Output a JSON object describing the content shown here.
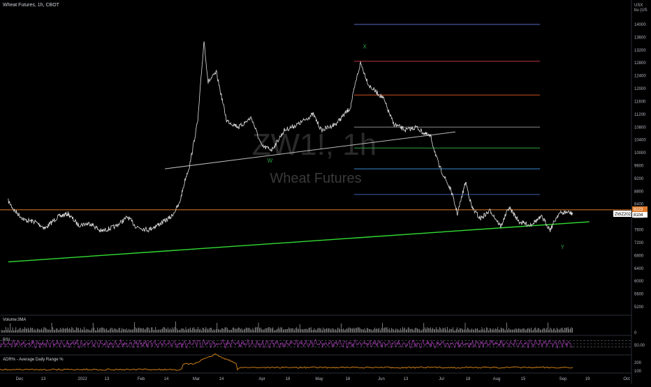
{
  "header": {
    "title": "Wheat Futures, 1h, CBOT",
    "currency": "USX",
    "currency_unit": "bu (US"
  },
  "watermark": {
    "symbol": "ZW1!, 1h",
    "name": "Wheat Futures"
  },
  "price_axis": {
    "ticks": [
      14000,
      13600,
      13200,
      12800,
      12400,
      12000,
      11600,
      11200,
      10800,
      10400,
      10000,
      9600,
      9200,
      8800,
      8400,
      8000,
      7600,
      7200,
      6800,
      6400,
      6000,
      5600,
      5200
    ],
    "last_price": "8104",
    "line_price": "8223",
    "contract_label": "ZWZ2022",
    "contract_price": "8104"
  },
  "time_axis": {
    "labels": [
      "Dec",
      "13",
      "2022",
      "13",
      "Feb",
      "14",
      "Mar",
      "14",
      "Apr",
      "18",
      "May",
      "16",
      "Jun",
      "13",
      "Jul",
      "18",
      "Aug",
      "15",
      "Sep",
      "19",
      "Oct"
    ]
  },
  "volume_pane": {
    "title": "Volume",
    "ma_label": "3MA",
    "ticks": [
      "0"
    ]
  },
  "rsi_pane": {
    "title": "RSI",
    "ticks": [
      "50.00"
    ]
  },
  "adr_pane": {
    "title": "ADR% - Average Daily Range %",
    "ticks": [
      "200",
      "100"
    ]
  },
  "wave_labels": {
    "w": "W",
    "x": "X",
    "y": "Y"
  },
  "colors": {
    "background": "#000000",
    "price": "#e0e0e0",
    "support_line": "#33dd33",
    "horizontal_line": "#e07a2b",
    "trendline": "#bbbbbb",
    "wave_label": "#2ea043",
    "rsi": "#b040c0",
    "adr": "#e08a1a",
    "fib_levels": [
      "#5a6dc0",
      "#c0304a",
      "#d05020",
      "#8a8a8a",
      "#2ea043",
      "#3a8ad0",
      "#3a60b0"
    ]
  },
  "chart_data": {
    "type": "line",
    "title": "Wheat Futures, 1h, CBOT",
    "series": [
      {
        "name": "ZW1!",
        "points": [
          [
            "2021-11-28",
            8500
          ],
          [
            "2021-12-01",
            8200
          ],
          [
            "2021-12-06",
            7900
          ],
          [
            "2021-12-11",
            7850
          ],
          [
            "2021-12-16",
            7650
          ],
          [
            "2021-12-22",
            8000
          ],
          [
            "2021-12-27",
            8100
          ],
          [
            "2022-01-01",
            7750
          ],
          [
            "2022-01-07",
            7800
          ],
          [
            "2022-01-12",
            7550
          ],
          [
            "2022-01-19",
            7700
          ],
          [
            "2022-01-25",
            8000
          ],
          [
            "2022-01-29",
            7700
          ],
          [
            "2022-02-04",
            7600
          ],
          [
            "2022-02-10",
            7800
          ],
          [
            "2022-02-15",
            8000
          ],
          [
            "2022-02-19",
            8400
          ],
          [
            "2022-02-22",
            9200
          ],
          [
            "2022-02-24",
            9600
          ],
          [
            "2022-02-28",
            11000
          ],
          [
            "2022-03-03",
            13500
          ],
          [
            "2022-03-05",
            12200
          ],
          [
            "2022-03-09",
            12500
          ],
          [
            "2022-03-14",
            11000
          ],
          [
            "2022-03-20",
            10800
          ],
          [
            "2022-03-26",
            11100
          ],
          [
            "2022-03-31",
            10200
          ],
          [
            "2022-04-05",
            10100
          ],
          [
            "2022-04-11",
            10700
          ],
          [
            "2022-04-18",
            10900
          ],
          [
            "2022-04-25",
            11200
          ],
          [
            "2022-04-29",
            10700
          ],
          [
            "2022-05-06",
            10900
          ],
          [
            "2022-05-13",
            11400
          ],
          [
            "2022-05-16",
            12300
          ],
          [
            "2022-05-18",
            12800
          ],
          [
            "2022-05-22",
            12100
          ],
          [
            "2022-05-29",
            11700
          ],
          [
            "2022-06-03",
            10900
          ],
          [
            "2022-06-09",
            10700
          ],
          [
            "2022-06-14",
            10800
          ],
          [
            "2022-06-18",
            10600
          ],
          [
            "2022-06-21",
            10500
          ],
          [
            "2022-06-25",
            9600
          ],
          [
            "2022-06-28",
            9200
          ],
          [
            "2022-07-01",
            8800
          ],
          [
            "2022-07-04",
            8100
          ],
          [
            "2022-07-08",
            9100
          ],
          [
            "2022-07-11",
            8300
          ],
          [
            "2022-07-15",
            7950
          ],
          [
            "2022-07-20",
            8200
          ],
          [
            "2022-07-25",
            7700
          ],
          [
            "2022-07-29",
            8300
          ],
          [
            "2022-08-03",
            7850
          ],
          [
            "2022-08-08",
            7750
          ],
          [
            "2022-08-14",
            8000
          ],
          [
            "2022-08-18",
            7600
          ],
          [
            "2022-08-22",
            8100
          ],
          [
            "2022-08-26",
            8150
          ],
          [
            "2022-08-29",
            8104
          ]
        ]
      },
      {
        "name": "RSI",
        "levels": [
          70,
          50,
          30
        ]
      }
    ],
    "ylim": [
      5000,
      14300
    ],
    "price_levels": [
      14000,
      12850,
      11800,
      10800,
      10150,
      9500,
      8700
    ],
    "support_line": {
      "from": [
        "2021-11-28",
        6600
      ],
      "to": [
        "2022-09-06",
        7850
      ]
    },
    "horizontal_line": 8223,
    "trendline": {
      "from": [
        "2022-02-12",
        9500
      ],
      "to": [
        "2022-07-03",
        10650
      ]
    },
    "wave_labels": [
      {
        "label": "W",
        "x": "2022-04-04",
        "y": 9700
      },
      {
        "label": "X",
        "x": "2022-05-20",
        "y": 13250
      },
      {
        "label": "Y",
        "x": "2022-08-24",
        "y": 7000
      }
    ],
    "legend": "top-left",
    "grid": false
  }
}
